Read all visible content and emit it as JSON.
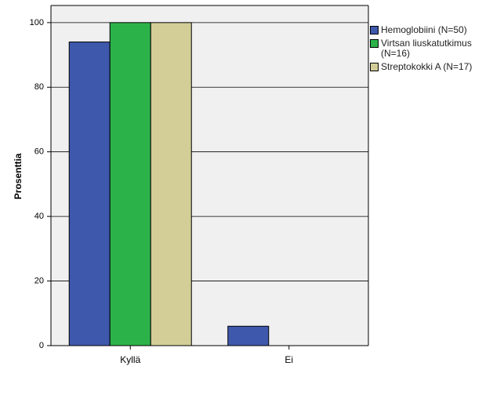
{
  "chart_data": {
    "type": "bar",
    "y_label": "Prosenttia",
    "categories": [
      "Kyllä",
      "Ei"
    ],
    "series": [
      {
        "name": "Hemoglobiini (N=50)",
        "color": "#3e58ac",
        "values": [
          94,
          6
        ]
      },
      {
        "name": "Virtsan liuskatutkimus (N=16)",
        "color": "#2bb34a",
        "values": [
          100,
          0
        ]
      },
      {
        "name": "Streptokokki A (N=17)",
        "color": "#d3ce97",
        "values": [
          100,
          0
        ]
      }
    ],
    "ylim": [
      0,
      105.3
    ],
    "yticks": [
      0,
      20,
      40,
      60,
      80,
      100
    ],
    "grid": true,
    "legend": "right"
  }
}
